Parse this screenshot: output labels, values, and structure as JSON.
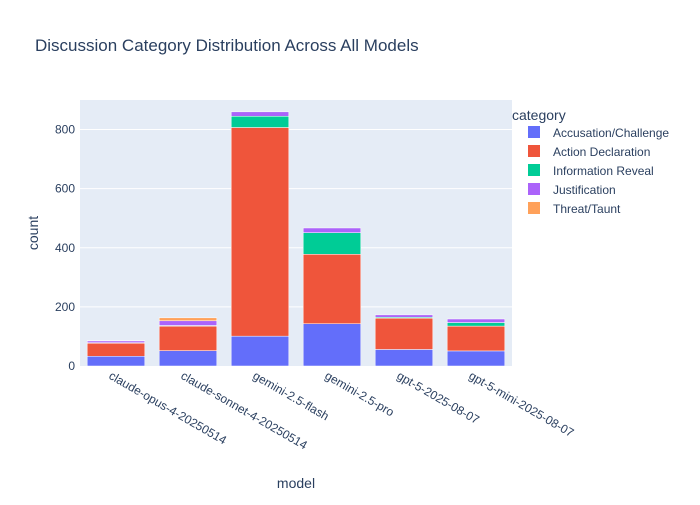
{
  "chart_data": {
    "type": "bar",
    "stacked": true,
    "title": "Discussion Category Distribution Across All Models",
    "xlabel": "model",
    "ylabel": "count",
    "ylim": [
      0,
      900
    ],
    "yticks": [
      0,
      200,
      400,
      600,
      800
    ],
    "grid": true,
    "legend": {
      "title": "category",
      "placement": "right"
    },
    "categories": [
      "claude-opus-4-20250514",
      "claude-sonnet-4-20250514",
      "gemini-2.5-flash",
      "gemini-2.5-pro",
      "gpt-5-2025-08-07",
      "gpt-5-mini-2025-08-07"
    ],
    "series": [
      {
        "name": "Accusation/Challenge",
        "color": "#636efa",
        "values": [
          33,
          52,
          101,
          143,
          56,
          51
        ]
      },
      {
        "name": "Action Declaration",
        "color": "#ef553b",
        "values": [
          44,
          83,
          706,
          235,
          106,
          84
        ]
      },
      {
        "name": "Information Reveal",
        "color": "#00cc96",
        "values": [
          2,
          2,
          38,
          73,
          3,
          12
        ]
      },
      {
        "name": "Justification",
        "color": "#ab63fa",
        "values": [
          6,
          16,
          15,
          16,
          8,
          12
        ]
      },
      {
        "name": "Threat/Taunt",
        "color": "#ffa15a",
        "values": [
          1,
          10,
          0,
          0,
          0,
          0
        ]
      }
    ]
  }
}
